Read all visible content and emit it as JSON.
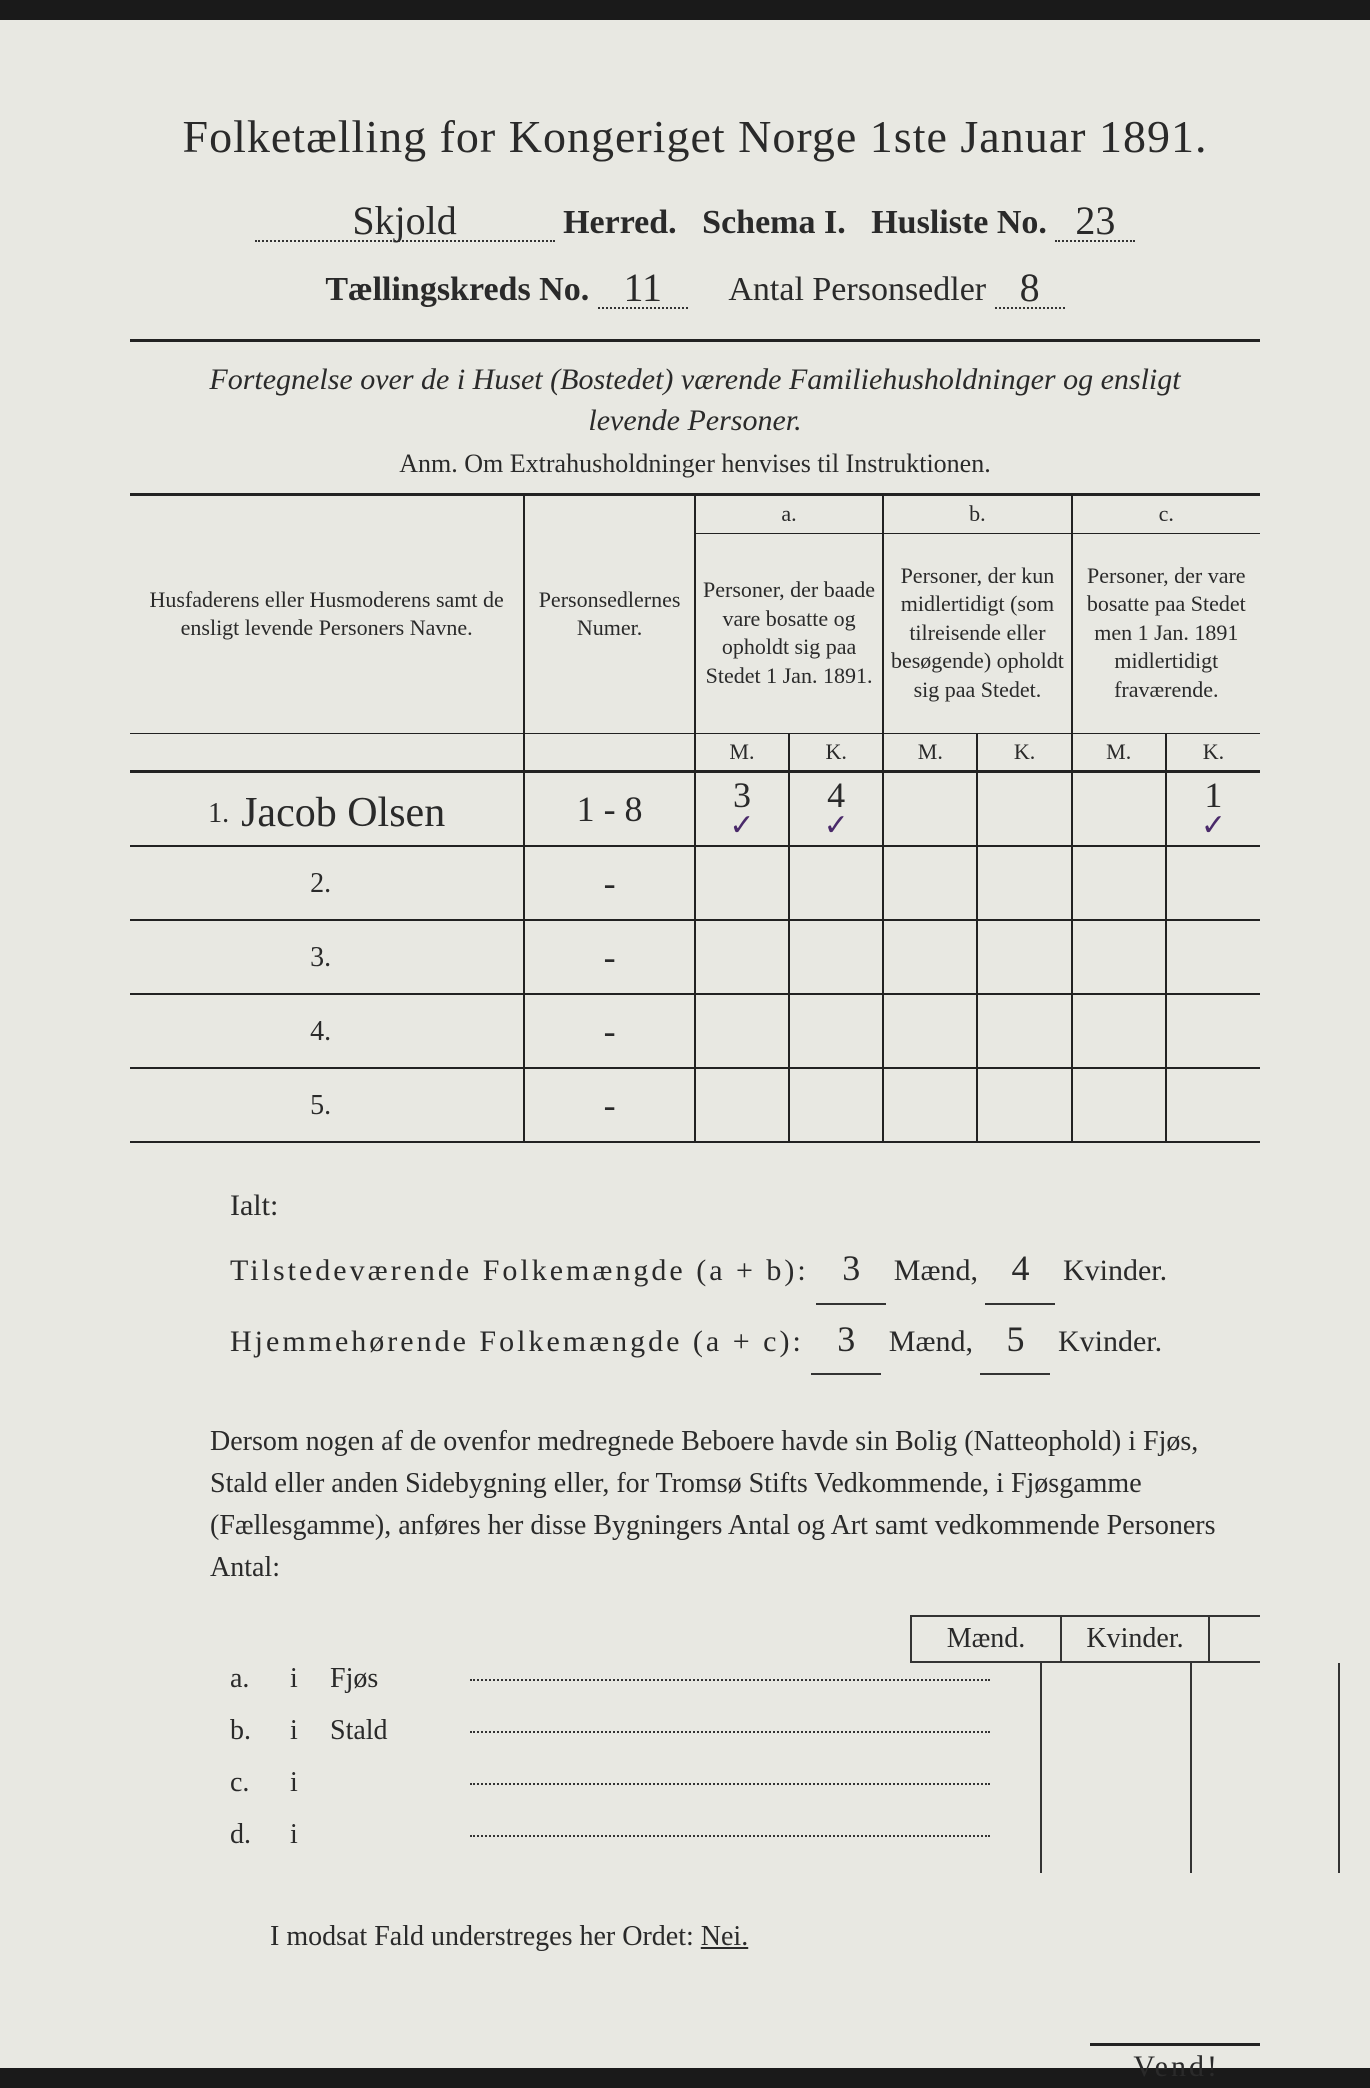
{
  "title": "Folketælling for Kongeriget Norge 1ste Januar 1891.",
  "header": {
    "herred_value": "Skjold",
    "herred_label": "Herred.",
    "schema_label": "Schema I.",
    "husliste_label": "Husliste No.",
    "husliste_value": "23",
    "kreds_label": "Tællingskreds No.",
    "kreds_value": "11",
    "antal_label": "Antal Personsedler",
    "antal_value": "8"
  },
  "subtitle_line1": "Fortegnelse over de i Huset (Bostedet) værende Familiehusholdninger og ensligt",
  "subtitle_line2": "levende Personer.",
  "anm": "Anm. Om Extrahusholdninger henvises til Instruktionen.",
  "table": {
    "col1_header": "Husfaderens eller Husmoderens samt de ensligt levende Personers Navne.",
    "col2_header": "Personsedlernes Numer.",
    "col_a_top": "a.",
    "col_a": "Personer, der baade vare bosatte og opholdt sig paa Stedet 1 Jan. 1891.",
    "col_b_top": "b.",
    "col_b": "Personer, der kun midlertidigt (som tilreisende eller besøgende) opholdt sig paa Stedet.",
    "col_c_top": "c.",
    "col_c": "Personer, der vare bosatte paa Stedet men 1 Jan. 1891 midlertidigt fraværende.",
    "m": "M.",
    "k": "K.",
    "rows": [
      {
        "n": "1.",
        "name": "Jacob Olsen",
        "num": "1 - 8",
        "am": "3",
        "ak": "4",
        "bm": "",
        "bk": "",
        "cm": "",
        "ck": "1"
      },
      {
        "n": "2.",
        "name": "",
        "num": "-",
        "am": "",
        "ak": "",
        "bm": "",
        "bk": "",
        "cm": "",
        "ck": ""
      },
      {
        "n": "3.",
        "name": "",
        "num": "-",
        "am": "",
        "ak": "",
        "bm": "",
        "bk": "",
        "cm": "",
        "ck": ""
      },
      {
        "n": "4.",
        "name": "",
        "num": "-",
        "am": "",
        "ak": "",
        "bm": "",
        "bk": "",
        "cm": "",
        "ck": ""
      },
      {
        "n": "5.",
        "name": "",
        "num": "-",
        "am": "",
        "ak": "",
        "bm": "",
        "bk": "",
        "cm": "",
        "ck": ""
      }
    ]
  },
  "ialt": {
    "label": "Ialt:",
    "line1_a": "Tilstedeværende Folkemængde (a + b):",
    "line2_a": "Hjemmehørende Folkemængde (a + c):",
    "maend": "Mænd,",
    "kvinder": "Kvinder.",
    "v1m": "3",
    "v1k": "4",
    "v2m": "3",
    "v2k": "5"
  },
  "paragraph": "Dersom nogen af de ovenfor medregnede Beboere havde sin Bolig (Natteophold) i Fjøs, Stald eller anden Sidebygning eller, for Tromsø Stifts Vedkommende, i Fjøsgamme (Fællesgamme), anføres her disse Bygningers Antal og Art samt vedkommende Personers Antal:",
  "mk": {
    "m": "Mænd.",
    "k": "Kvinder."
  },
  "abcd": [
    {
      "l": "a.",
      "i": "i",
      "w": "Fjøs"
    },
    {
      "l": "b.",
      "i": "i",
      "w": "Stald"
    },
    {
      "l": "c.",
      "i": "i",
      "w": ""
    },
    {
      "l": "d.",
      "i": "i",
      "w": ""
    }
  ],
  "final": "I modsat Fald understreges her Ordet: ",
  "nei": "Nei.",
  "vend": "Vend!",
  "colors": {
    "paper": "#e8e8e2",
    "ink": "#2a2a2a",
    "check": "#4a2a6a"
  }
}
